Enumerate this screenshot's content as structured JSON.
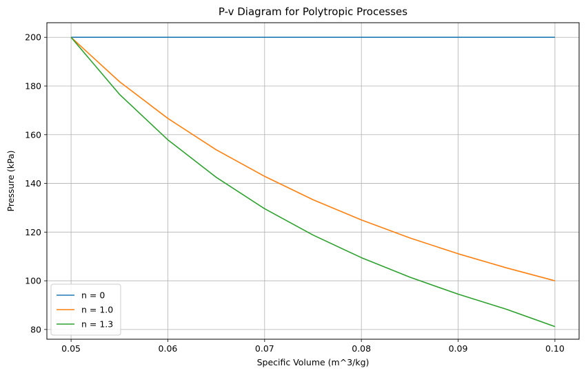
{
  "chart_data": {
    "type": "line",
    "title": "P-v Diagram for Polytropic Processes",
    "xlabel": "Specific Volume (m^3/kg)",
    "ylabel": "Pressure (kPa)",
    "xlim": [
      0.0475,
      0.1025
    ],
    "ylim": [
      76,
      206
    ],
    "xticks": [
      0.05,
      0.06,
      0.07,
      0.08,
      0.09,
      0.1
    ],
    "xtick_labels": [
      "0.05",
      "0.06",
      "0.07",
      "0.08",
      "0.09",
      "0.10"
    ],
    "yticks": [
      80,
      100,
      120,
      140,
      160,
      180,
      200
    ],
    "ytick_labels": [
      "80",
      "100",
      "120",
      "140",
      "160",
      "180",
      "200"
    ],
    "grid": true,
    "legend_position": "lower-left",
    "x": [
      0.05,
      0.055,
      0.06,
      0.065,
      0.07,
      0.075,
      0.08,
      0.085,
      0.09,
      0.095,
      0.1
    ],
    "series": [
      {
        "name": "n = 0",
        "color": "#1f77b4",
        "values": [
          200,
          200,
          200,
          200,
          200,
          200,
          200,
          200,
          200,
          200,
          200
        ]
      },
      {
        "name": "n = 1.0",
        "color": "#ff7f0e",
        "values": [
          200,
          181.8,
          166.7,
          153.8,
          142.9,
          133.3,
          125.0,
          117.6,
          111.1,
          105.3,
          100.0
        ]
      },
      {
        "name": "n = 1.3",
        "color": "#2ca02c",
        "values": [
          200,
          176.6,
          157.9,
          142.5,
          129.6,
          118.8,
          109.5,
          101.5,
          94.5,
          88.3,
          81.2
        ]
      }
    ]
  }
}
